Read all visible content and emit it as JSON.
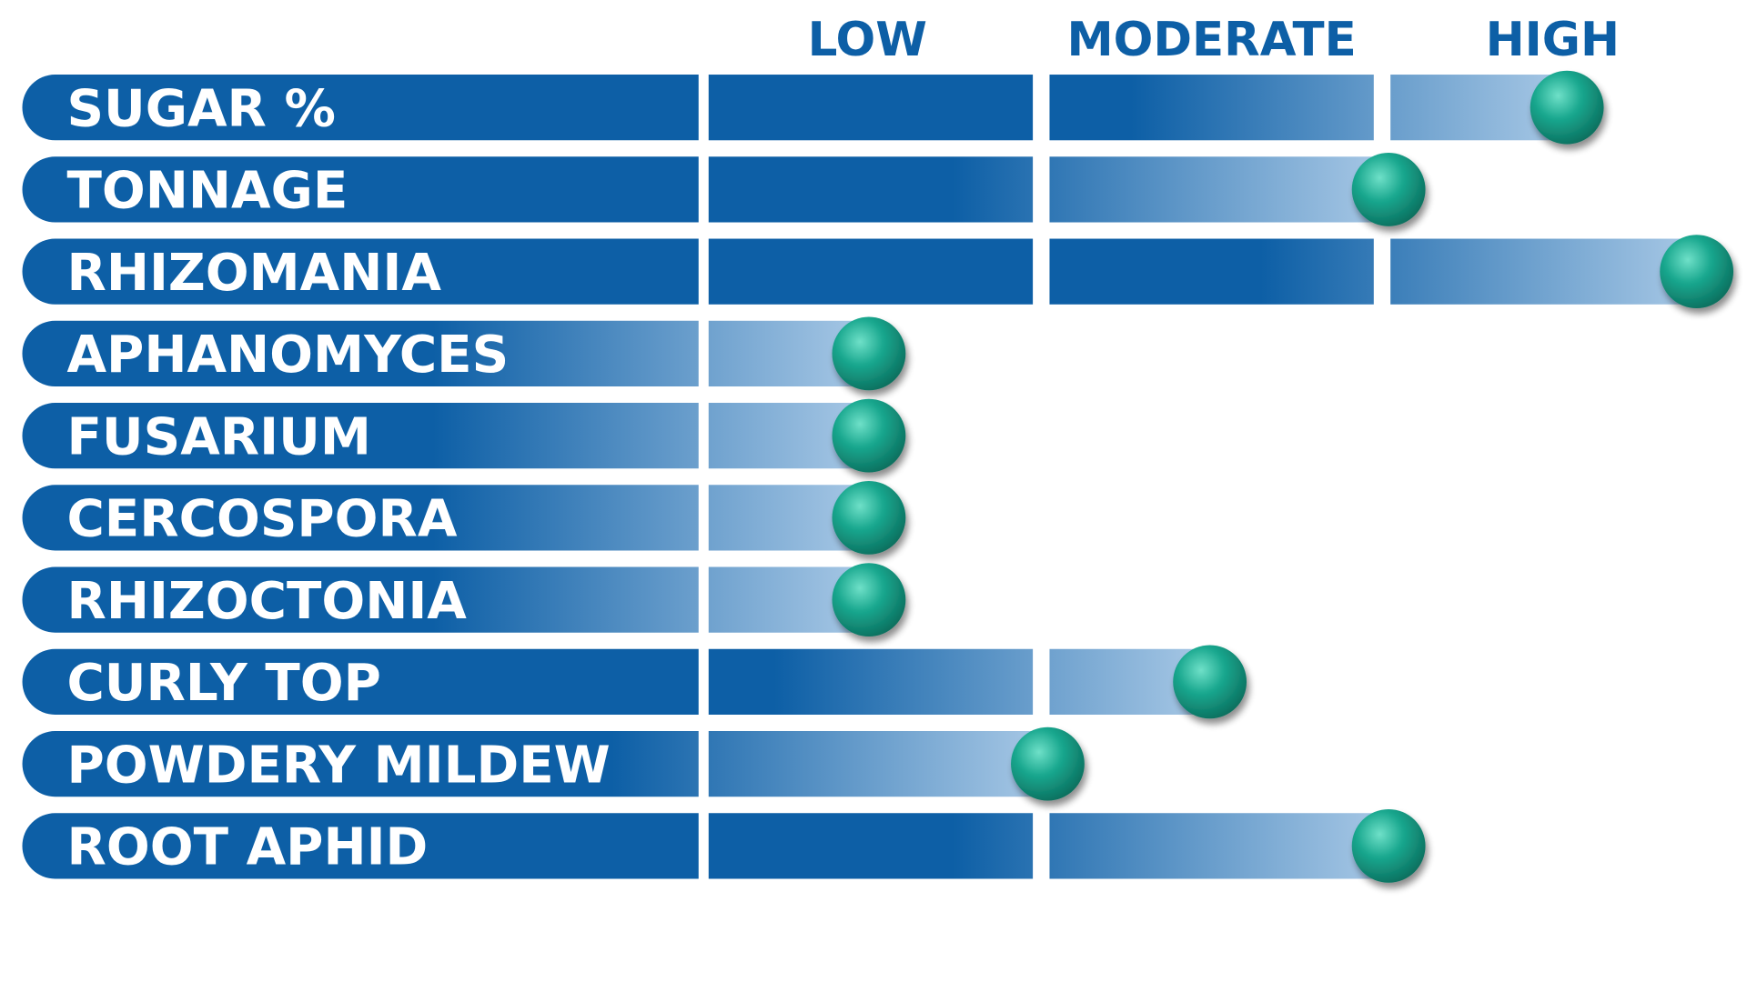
{
  "colors": {
    "bar_dark": "#0d5fa6",
    "bar_light": "#a9c9e6",
    "header_text": "#0d5fa6",
    "row_text": "#ffffff",
    "marker_light": "#6fe0c8",
    "marker_mid": "#1aa88f",
    "marker_dark": "#0b6f5e",
    "background": "#ffffff"
  },
  "chart_data": {
    "type": "bar",
    "orientation": "horizontal",
    "levels": [
      "LOW",
      "MODERATE",
      "HIGH"
    ],
    "categories": [
      "SUGAR %",
      "TONNAGE",
      "RHIZOMANIA",
      "APHANOMYCES",
      "FUSARIUM",
      "CERCOSPORA",
      "RHIZOCTONIA",
      "CURLY TOP",
      "POWDERY MILDEW",
      "ROOT APHID"
    ],
    "values": [
      2.55,
      2.0,
      2.95,
      0.5,
      0.5,
      0.5,
      0.5,
      1.5,
      1.0,
      2.0
    ],
    "value_scale": "0 = start of LOW segment, 1 = start of MODERATE segment, 2 = start of HIGH segment, 3 = end of HIGH segment",
    "xlim": [
      0,
      3
    ],
    "marker": "teal sphere at end of each bar",
    "legend": "none",
    "grid": false
  }
}
